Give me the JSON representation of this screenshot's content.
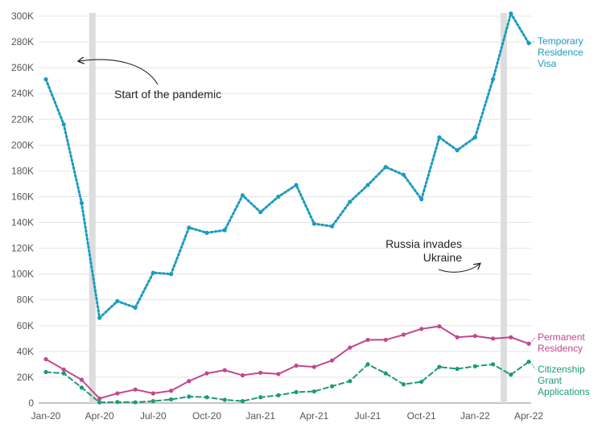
{
  "chart_data": {
    "type": "line",
    "x": [
      "Jan-20",
      "Feb-20",
      "Mar-20",
      "Apr-20",
      "May-20",
      "Jun-20",
      "Jul-20",
      "Aug-20",
      "Sep-20",
      "Oct-20",
      "Nov-20",
      "Dec-20",
      "Jan-21",
      "Feb-21",
      "Mar-21",
      "Apr-21",
      "May-21",
      "Jun-21",
      "Jul-21",
      "Aug-21",
      "Sep-21",
      "Oct-21",
      "Nov-21",
      "Dec-21",
      "Jan-22",
      "Feb-22",
      "Mar-22",
      "Apr-22"
    ],
    "x_tick_labels": [
      "Jan-20",
      "Apr-20",
      "Jul-20",
      "Oct-20",
      "Jan-21",
      "Apr-21",
      "Jul-21",
      "Oct-21",
      "Jan-22",
      "Apr-22"
    ],
    "y_tick_labels": [
      "0",
      "20K",
      "40K",
      "60K",
      "80K",
      "100K",
      "120K",
      "140K",
      "160K",
      "180K",
      "200K",
      "220K",
      "240K",
      "260K",
      "280K",
      "300K"
    ],
    "ylim": [
      0,
      300000
    ],
    "grid": true,
    "series": [
      {
        "name": "Temporary Residence Visa",
        "label_lines": [
          "Temporary",
          "Residence",
          "Visa"
        ],
        "color": "#1b9bbf",
        "style": "dotted",
        "values": [
          251000,
          216000,
          155000,
          66000,
          79000,
          74000,
          101000,
          100000,
          136000,
          132000,
          134000,
          161000,
          148000,
          160000,
          169000,
          139000,
          137000,
          156000,
          169000,
          183000,
          177000,
          158000,
          206000,
          196000,
          206000,
          251000,
          302000,
          279000
        ]
      },
      {
        "name": "Permanent Residency",
        "label_lines": [
          "Permanent",
          "Residency"
        ],
        "color": "#c2478f",
        "style": "solid",
        "values": [
          34000,
          26000,
          18000,
          3500,
          7500,
          10500,
          7500,
          9500,
          17000,
          23000,
          25500,
          21500,
          23500,
          22500,
          29000,
          28000,
          33000,
          43000,
          49000,
          49000,
          53000,
          57500,
          59500,
          51000,
          52000,
          50000,
          51000,
          46000
        ]
      },
      {
        "name": "Citizenship Grant Applications",
        "label_lines": [
          "Citizenship",
          "Grant",
          "Applications"
        ],
        "color": "#1b9a7a",
        "style": "dashed",
        "values": [
          24000,
          23000,
          12000,
          500,
          800,
          600,
          1500,
          2800,
          5000,
          4500,
          2500,
          1500,
          4500,
          6000,
          8500,
          9000,
          13000,
          17000,
          30000,
          23000,
          14500,
          16500,
          28000,
          26500,
          28500,
          30000,
          22000,
          32000
        ]
      }
    ],
    "annotations": [
      {
        "text": "Start of the pandemic",
        "lines": [
          "Start of the pandemic"
        ],
        "x": "Mar-20"
      },
      {
        "text": "Russia invades Ukraine",
        "lines": [
          "Russia invades",
          "Ukraine"
        ],
        "x": "Feb-22"
      }
    ]
  }
}
